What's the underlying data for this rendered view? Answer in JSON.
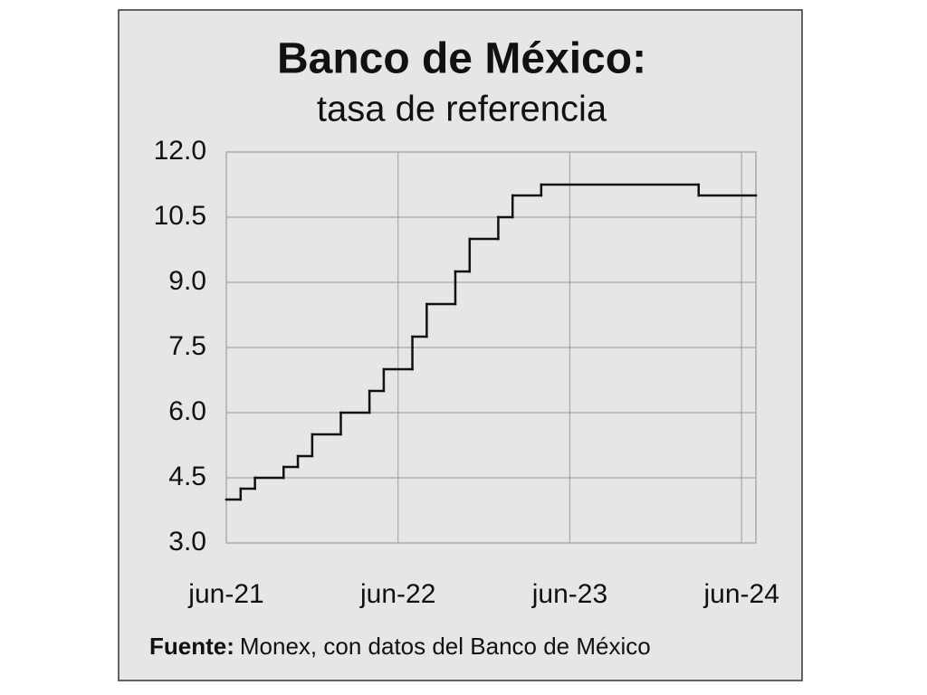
{
  "chart_data": {
    "type": "step",
    "title": "Banco de México:",
    "subtitle": "tasa de referencia",
    "source_label": "Fuente:",
    "source": "Monex, con datos del Banco de México",
    "x": [
      "2021-06",
      "2021-07",
      "2021-08",
      "2021-10",
      "2021-11",
      "2021-12",
      "2022-02",
      "2022-04",
      "2022-05",
      "2022-07",
      "2022-08",
      "2022-10",
      "2022-11",
      "2023-01",
      "2023-02",
      "2023-04",
      "2024-03"
    ],
    "values": [
      4.0,
      4.25,
      4.5,
      4.75,
      5.0,
      5.5,
      6.0,
      6.5,
      7.0,
      7.75,
      8.5,
      9.25,
      10.0,
      10.5,
      11.0,
      11.25,
      11.0
    ],
    "color": "#111111",
    "xlim": [
      "2021-06",
      "2024-07"
    ],
    "xticks": [
      {
        "value": "2021-06",
        "label": "jun-21"
      },
      {
        "value": "2022-06",
        "label": "jun-22"
      },
      {
        "value": "2023-06",
        "label": "jun-23"
      },
      {
        "value": "2024-06",
        "label": "jun-24"
      }
    ],
    "ylim": [
      3.0,
      12.0
    ],
    "yticks": [
      {
        "value": 3,
        "label": "3.0"
      },
      {
        "value": 4.5,
        "label": "4.5"
      },
      {
        "value": 6,
        "label": "6.0"
      },
      {
        "value": 7.5,
        "label": "7.5"
      },
      {
        "value": 9,
        "label": "9.0"
      },
      {
        "value": 10.5,
        "label": "10.5"
      },
      {
        "value": 12,
        "label": "12.0"
      }
    ],
    "grid": true
  }
}
